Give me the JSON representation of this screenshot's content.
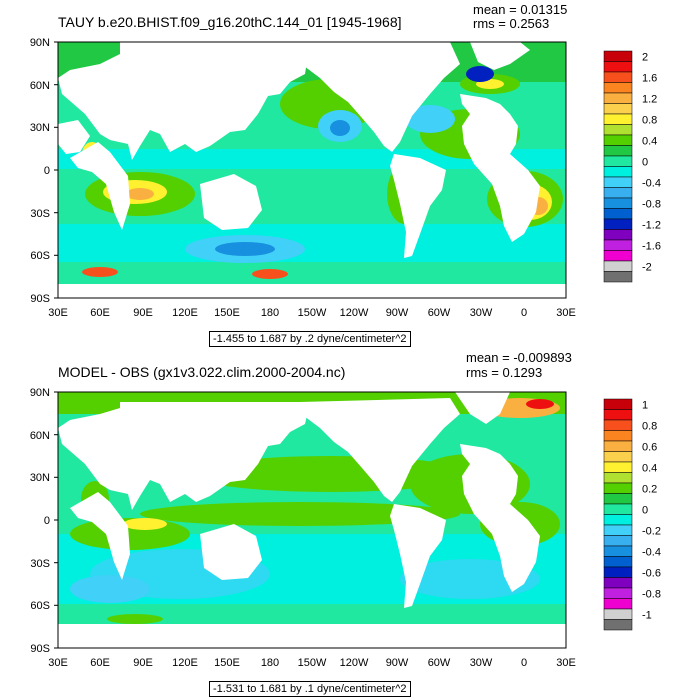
{
  "top_panel": {
    "title": "TAUY b.e20.BHIST.f09_g16.20thC.144_01 [1945-1968]",
    "mean": "mean = 0.01315",
    "rms": "rms = 0.2563",
    "caption": "-1.455 to 1.687 by .2 dyne/centimeter^2",
    "colorbar_labels": [
      "2",
      "1.6",
      "1.2",
      "0.8",
      "0.4",
      "0",
      "-0.4",
      "-0.8",
      "-1.2",
      "-1.6",
      "-2"
    ],
    "colorbar_colors": [
      "#c8000a",
      "#ee1010",
      "#f8501c",
      "#fa8420",
      "#fab040",
      "#fad04c",
      "#fff030",
      "#b0e030",
      "#54d000",
      "#20c844",
      "#20e8a0",
      "#00f0e0",
      "#40d0f8",
      "#38b0f0",
      "#1890e0",
      "#0060d0",
      "#0020c0",
      "#8000c0",
      "#c020e0",
      "#f000d0",
      "#d0d0d0",
      "#707070"
    ]
  },
  "bottom_panel": {
    "title": "MODEL - OBS (gx1v3.022.clim.2000-2004.nc)",
    "mean": "mean = -0.009893",
    "rms": "rms = 0.1293",
    "caption": "-1.531 to 1.681 by .1 dyne/centimeter^2",
    "colorbar_labels": [
      "1",
      "0.8",
      "0.6",
      "0.4",
      "0.2",
      "0",
      "-0.2",
      "-0.4",
      "-0.6",
      "-0.8",
      "-1"
    ],
    "colorbar_colors": [
      "#c8000a",
      "#ee1010",
      "#f8501c",
      "#fa8420",
      "#fab040",
      "#fad04c",
      "#fff030",
      "#b0e030",
      "#54d000",
      "#20c844",
      "#20e8a0",
      "#00f0e0",
      "#40d0f8",
      "#38b0f0",
      "#1890e0",
      "#0060d0",
      "#0020c0",
      "#8000c0",
      "#c020e0",
      "#f000d0",
      "#d0d0d0",
      "#707070"
    ]
  },
  "lat_labels": [
    "90N",
    "60N",
    "30N",
    "0",
    "30S",
    "60S",
    "90S"
  ],
  "lon_labels": [
    "30E",
    "60E",
    "90E",
    "120E",
    "150E",
    "180",
    "150W",
    "120W",
    "90W",
    "60W",
    "30W",
    "0",
    "30E"
  ],
  "land_color": "#ffffff",
  "ocean_base_color": "#20e8a0"
}
